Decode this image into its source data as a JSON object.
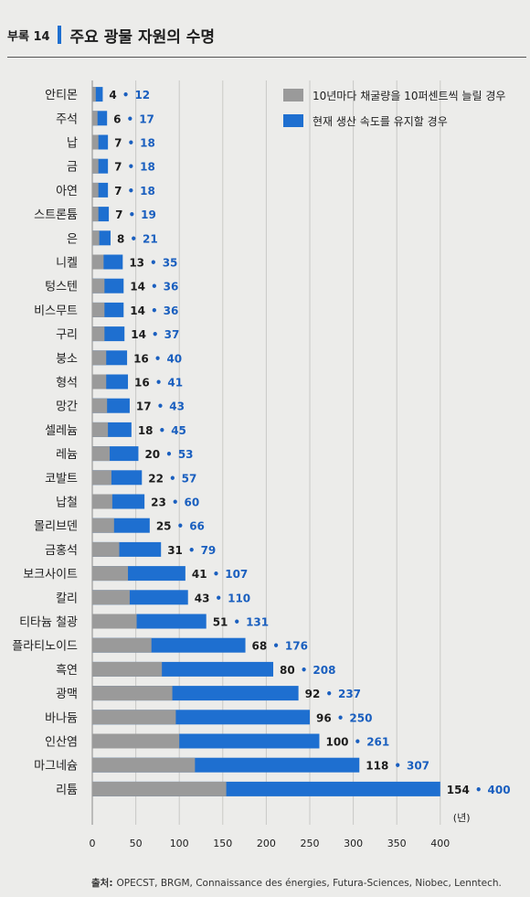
{
  "header": {
    "appendix_label": "부록 14",
    "title": "주요 광물 자원의 수명"
  },
  "chart_data": {
    "type": "bar",
    "orientation": "horizontal",
    "stacked": false,
    "categories": [
      "안티몬",
      "주석",
      "납",
      "금",
      "아연",
      "스트론튬",
      "은",
      "니켈",
      "텅스텐",
      "비스무트",
      "구리",
      "붕소",
      "형석",
      "망간",
      "셀레늄",
      "레늄",
      "코발트",
      "납철",
      "몰리브덴",
      "금홍석",
      "보크사이트",
      "칼리",
      "티타늄 철광",
      "플라티노이드",
      "흑연",
      "광맥",
      "바나듐",
      "인산염",
      "마그네슘",
      "리튬"
    ],
    "series": [
      {
        "name": "10년마다 채굴량을 10퍼센트씩 늘릴 경우",
        "color": "#9a9a9a",
        "values": [
          4,
          6,
          7,
          7,
          7,
          7,
          8,
          13,
          14,
          14,
          14,
          16,
          16,
          17,
          18,
          20,
          22,
          23,
          25,
          31,
          41,
          43,
          51,
          68,
          80,
          92,
          96,
          100,
          118,
          154
        ]
      },
      {
        "name": "현재 생산 속도를 유지할 경우",
        "color": "#1e6fd0",
        "values": [
          12,
          17,
          18,
          18,
          18,
          19,
          21,
          35,
          36,
          36,
          37,
          40,
          41,
          43,
          45,
          53,
          57,
          60,
          66,
          79,
          107,
          110,
          131,
          176,
          208,
          237,
          250,
          261,
          307,
          400
        ]
      }
    ],
    "xaxis": {
      "ticks": [
        "0",
        "50",
        "100",
        "150",
        "200",
        "250",
        "300",
        "350",
        "400"
      ],
      "unit": "(년)",
      "range": [
        0,
        400
      ]
    },
    "grid": "vertical",
    "label_separator": "•",
    "legend_position": "top-right"
  },
  "source": {
    "label": "출처:",
    "text": "OPECST, BRGM, Connaissance des énergies, Futura-Sciences, Niobec, Lenntech."
  },
  "colors": {
    "gray_series": "#9a9a9a",
    "blue_series": "#1e6fd0",
    "blue_label": "#1a5fbf",
    "background": "#ececea"
  }
}
